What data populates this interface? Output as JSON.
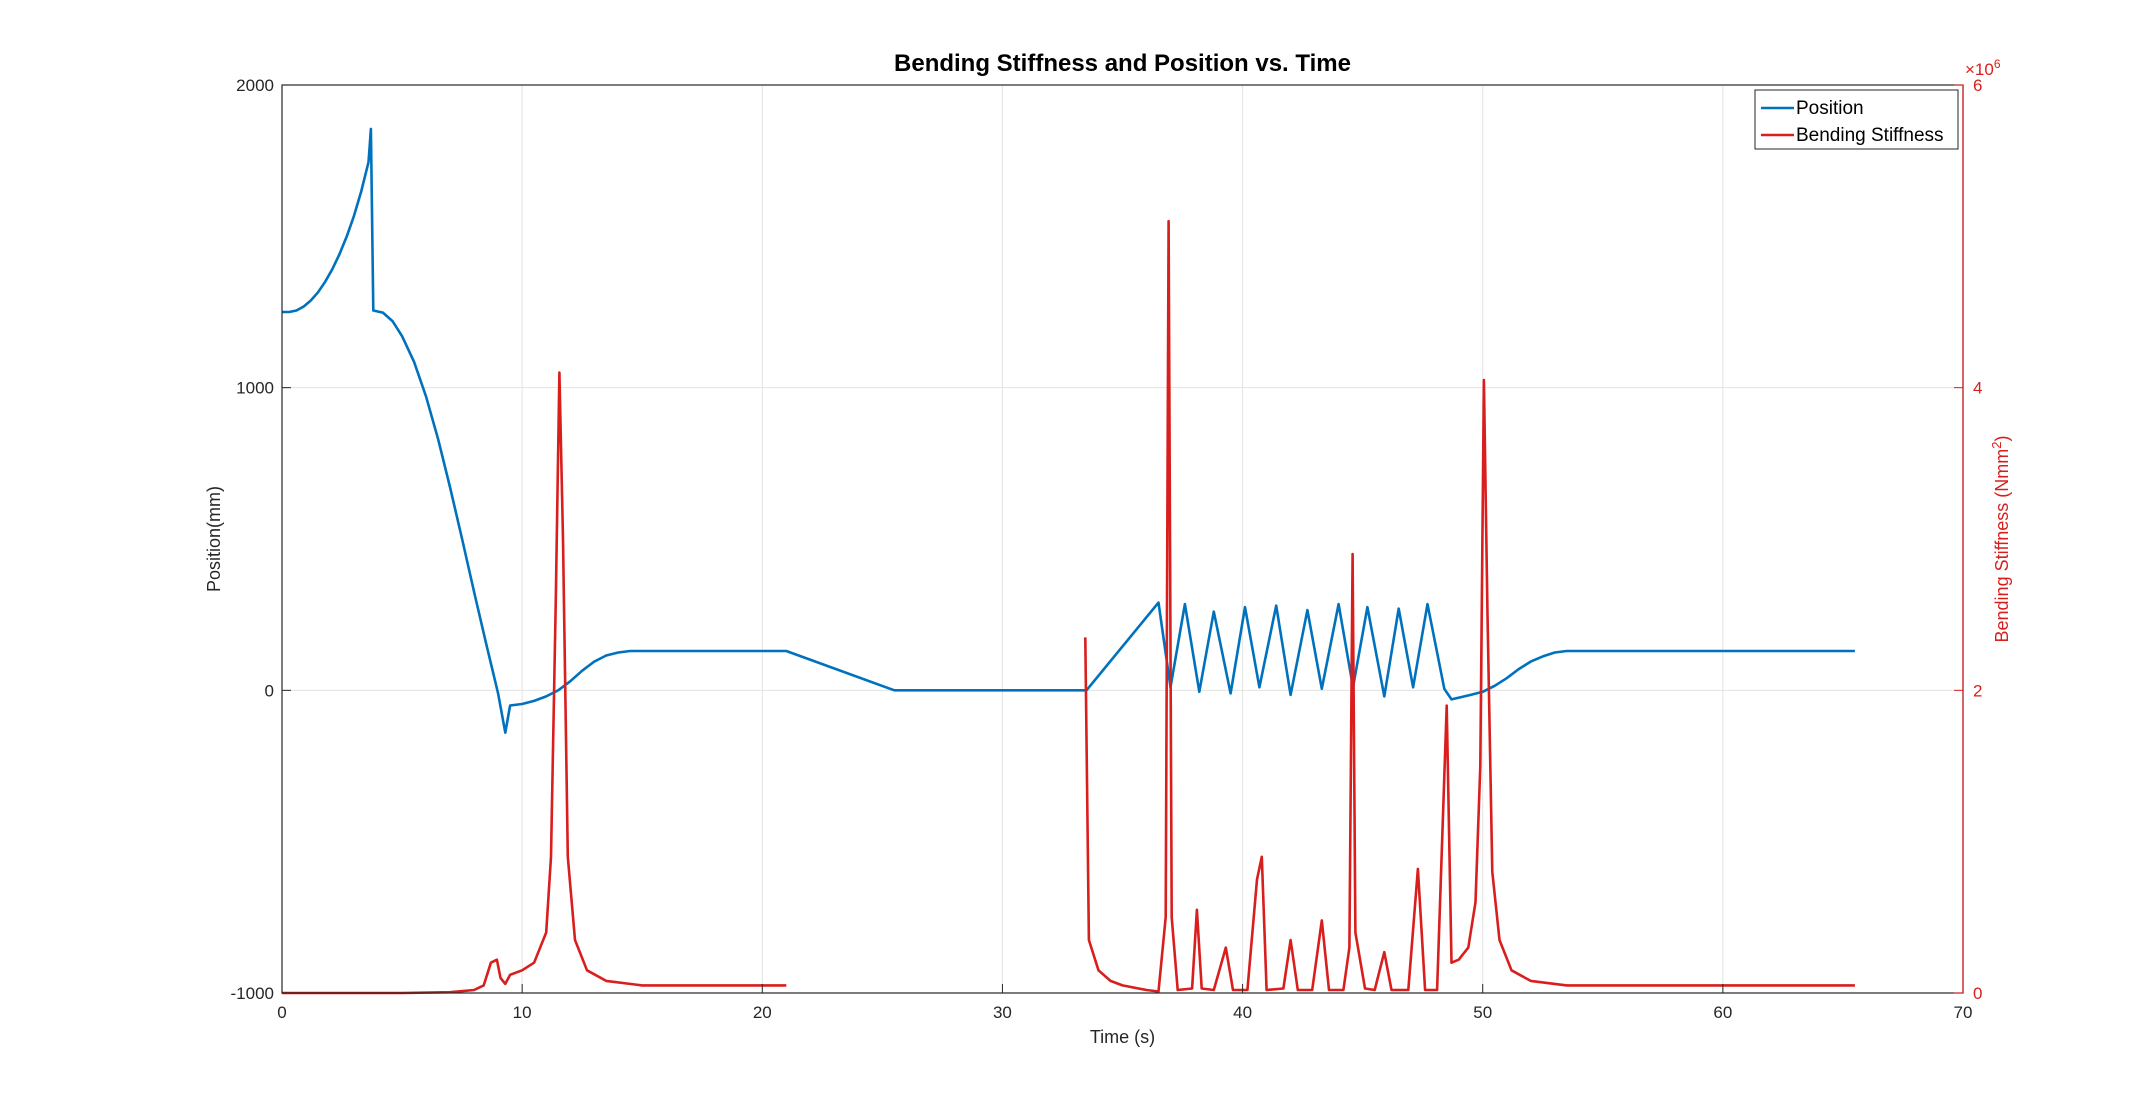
{
  "chart_data": {
    "type": "line",
    "title": "Bending Stiffness and Position vs. Time",
    "xlabel": "Time (s)",
    "ylabel_left": "Position(mm)",
    "ylabel_right": "Bending Stiffness (Nmm",
    "ylabel_right_exp": "2",
    "ylabel_right_close": ")",
    "right_axis_exponent_base": "×10",
    "right_axis_exponent_power": "6",
    "xlim": [
      0,
      70
    ],
    "ylim_left": [
      -1000,
      2000
    ],
    "ylim_right": [
      0,
      6
    ],
    "xticks": [
      "0",
      "10",
      "20",
      "30",
      "40",
      "50",
      "60",
      "70"
    ],
    "yticks_left": [
      "-1000",
      "0",
      "1000",
      "2000"
    ],
    "yticks_right": [
      "0",
      "2",
      "4",
      "6"
    ],
    "grid": true,
    "legend_position": "top-right",
    "colors": {
      "position": "#0072BD",
      "stiffness": "#D91E1E",
      "right_axis": "#D91E1E"
    },
    "series": [
      {
        "name": "Position",
        "axis": "left",
        "points": [
          [
            0,
            1250
          ],
          [
            0.3,
            1250
          ],
          [
            0.6,
            1255
          ],
          [
            0.9,
            1268
          ],
          [
            1.2,
            1288
          ],
          [
            1.5,
            1315
          ],
          [
            1.8,
            1350
          ],
          [
            2.1,
            1392
          ],
          [
            2.4,
            1442
          ],
          [
            2.7,
            1500
          ],
          [
            3.0,
            1568
          ],
          [
            3.3,
            1648
          ],
          [
            3.6,
            1745
          ],
          [
            3.7,
            1855
          ],
          [
            3.8,
            1255
          ],
          [
            4.2,
            1248
          ],
          [
            4.6,
            1220
          ],
          [
            5.0,
            1170
          ],
          [
            5.5,
            1085
          ],
          [
            6.0,
            970
          ],
          [
            6.5,
            830
          ],
          [
            7.0,
            670
          ],
          [
            7.5,
            500
          ],
          [
            8.0,
            325
          ],
          [
            8.5,
            155
          ],
          [
            9.0,
            -10
          ],
          [
            9.3,
            -140
          ],
          [
            9.5,
            -50
          ],
          [
            10.0,
            -45
          ],
          [
            10.5,
            -35
          ],
          [
            11.0,
            -20
          ],
          [
            11.5,
            0
          ],
          [
            12.0,
            30
          ],
          [
            12.5,
            65
          ],
          [
            13.0,
            95
          ],
          [
            13.5,
            115
          ],
          [
            14.0,
            125
          ],
          [
            14.5,
            130
          ],
          [
            15.0,
            130
          ],
          [
            21.0,
            130
          ],
          [
            25.5,
            0
          ],
          [
            33.5,
            0
          ],
          [
            36.5,
            290
          ],
          [
            37.0,
            10
          ],
          [
            37.6,
            285
          ],
          [
            38.2,
            -5
          ],
          [
            38.8,
            260
          ],
          [
            39.5,
            -10
          ],
          [
            40.1,
            275
          ],
          [
            40.7,
            10
          ],
          [
            41.4,
            280
          ],
          [
            42.0,
            -15
          ],
          [
            42.7,
            265
          ],
          [
            43.3,
            5
          ],
          [
            44.0,
            285
          ],
          [
            44.6,
            10
          ],
          [
            45.2,
            275
          ],
          [
            45.9,
            -20
          ],
          [
            46.5,
            270
          ],
          [
            47.1,
            10
          ],
          [
            47.7,
            285
          ],
          [
            48.4,
            5
          ],
          [
            48.7,
            -30
          ],
          [
            49.5,
            -15
          ],
          [
            50.0,
            -5
          ],
          [
            50.5,
            15
          ],
          [
            51.0,
            40
          ],
          [
            51.5,
            70
          ],
          [
            52.0,
            95
          ],
          [
            52.5,
            112
          ],
          [
            53.0,
            125
          ],
          [
            53.5,
            130
          ],
          [
            54.0,
            130
          ],
          [
            65.5,
            130
          ]
        ]
      },
      {
        "name": "Bending Stiffness",
        "axis": "right",
        "points": [
          [
            0,
            0.0
          ],
          [
            5,
            0.0
          ],
          [
            7,
            0.005
          ],
          [
            8,
            0.02
          ],
          [
            8.4,
            0.05
          ],
          [
            8.7,
            0.2
          ],
          [
            8.95,
            0.22
          ],
          [
            9.1,
            0.1
          ],
          [
            9.3,
            0.06
          ],
          [
            9.5,
            0.12
          ],
          [
            10.0,
            0.15
          ],
          [
            10.5,
            0.2
          ],
          [
            11.0,
            0.4
          ],
          [
            11.2,
            0.9
          ],
          [
            11.4,
            2.6
          ],
          [
            11.55,
            4.1
          ],
          [
            11.7,
            3.0
          ],
          [
            11.9,
            0.9
          ],
          [
            12.2,
            0.35
          ],
          [
            12.7,
            0.15
          ],
          [
            13.5,
            0.08
          ],
          [
            15,
            0.05
          ],
          [
            21,
            0.05
          ],
          [
            33.4,
            null
          ],
          [
            33.45,
            2.35
          ],
          [
            33.6,
            0.35
          ],
          [
            34.0,
            0.15
          ],
          [
            34.5,
            0.08
          ],
          [
            35.0,
            0.05
          ],
          [
            36.0,
            0.02
          ],
          [
            36.5,
            0.01
          ],
          [
            36.8,
            0.5
          ],
          [
            36.92,
            5.1
          ],
          [
            37.05,
            0.5
          ],
          [
            37.3,
            0.02
          ],
          [
            37.9,
            0.03
          ],
          [
            38.1,
            0.55
          ],
          [
            38.3,
            0.03
          ],
          [
            38.8,
            0.02
          ],
          [
            39.3,
            0.3
          ],
          [
            39.6,
            0.02
          ],
          [
            40.2,
            0.02
          ],
          [
            40.6,
            0.75
          ],
          [
            40.8,
            0.9
          ],
          [
            41.0,
            0.02
          ],
          [
            41.7,
            0.03
          ],
          [
            42.0,
            0.35
          ],
          [
            42.3,
            0.02
          ],
          [
            42.9,
            0.02
          ],
          [
            43.3,
            0.48
          ],
          [
            43.6,
            0.02
          ],
          [
            44.2,
            0.02
          ],
          [
            44.45,
            0.3
          ],
          [
            44.58,
            2.9
          ],
          [
            44.7,
            0.4
          ],
          [
            45.1,
            0.03
          ],
          [
            45.5,
            0.02
          ],
          [
            45.9,
            0.27
          ],
          [
            46.2,
            0.02
          ],
          [
            46.9,
            0.02
          ],
          [
            47.3,
            0.82
          ],
          [
            47.6,
            0.02
          ],
          [
            48.1,
            0.02
          ],
          [
            48.5,
            1.9
          ],
          [
            48.7,
            0.2
          ],
          [
            49.0,
            0.22
          ],
          [
            49.4,
            0.3
          ],
          [
            49.7,
            0.6
          ],
          [
            49.9,
            1.5
          ],
          [
            50.05,
            4.05
          ],
          [
            50.2,
            2.5
          ],
          [
            50.4,
            0.8
          ],
          [
            50.7,
            0.35
          ],
          [
            51.2,
            0.15
          ],
          [
            52.0,
            0.08
          ],
          [
            53.5,
            0.05
          ],
          [
            65.5,
            0.05
          ]
        ]
      }
    ]
  }
}
